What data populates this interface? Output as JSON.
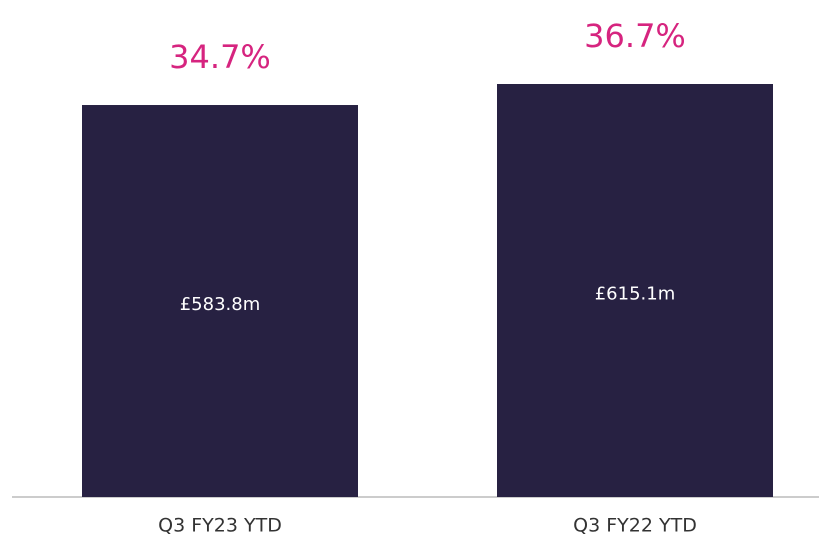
{
  "chart_data": {
    "type": "bar",
    "categories": [
      "Q3 FY23 YTD",
      "Q3 FY22 YTD"
    ],
    "values": [
      583.8,
      615.1
    ],
    "value_labels": [
      "£583.8m",
      "£615.1m"
    ],
    "annotations": [
      "34.7%",
      "36.7%"
    ],
    "color": "#272142",
    "annotation_color": "#d6247f"
  }
}
